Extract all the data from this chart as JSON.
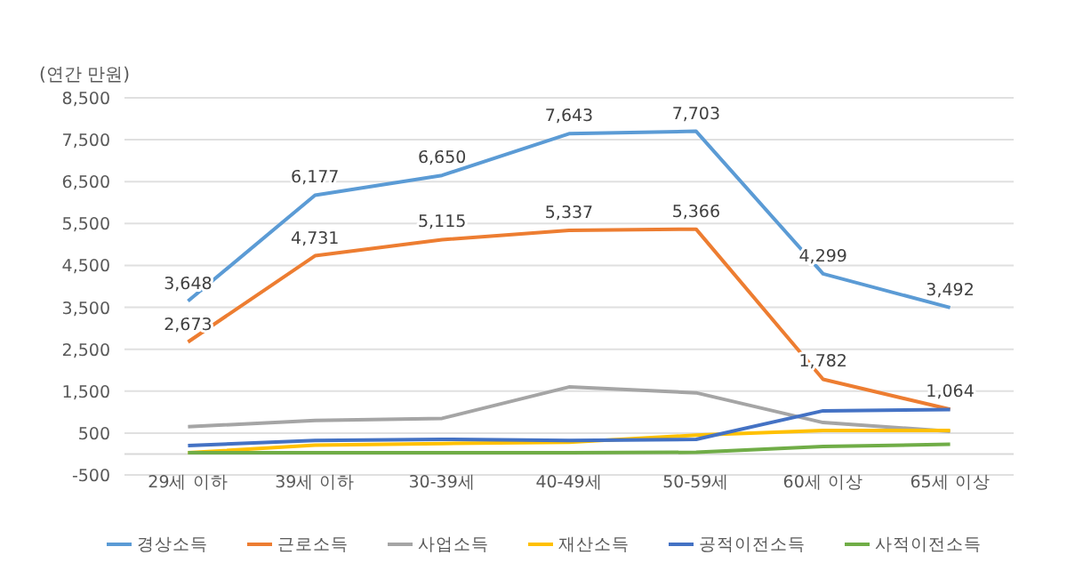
{
  "chart_data": {
    "type": "line",
    "ylabel": "(연간 만원)",
    "categories": [
      "29세 이하",
      "39세 이하",
      "30-39세",
      "40-49세",
      "50-59세",
      "60세 이상",
      "65세 이상"
    ],
    "ylim": [
      -500,
      8500
    ],
    "yticks": [
      {
        "value": -500,
        "label": "-500"
      },
      {
        "value": 500,
        "label": "500"
      },
      {
        "value": 1500,
        "label": "1,500"
      },
      {
        "value": 2500,
        "label": "2,500"
      },
      {
        "value": 3500,
        "label": "3,500"
      },
      {
        "value": 4500,
        "label": "4,500"
      },
      {
        "value": 5500,
        "label": "5,500"
      },
      {
        "value": 6500,
        "label": "6,500"
      },
      {
        "value": 7500,
        "label": "7,500"
      },
      {
        "value": 8500,
        "label": "8,500"
      }
    ],
    "grid": "y",
    "legend": "bottom",
    "marker": "none",
    "line_style": "solid",
    "series": [
      {
        "name": "경상소득",
        "color": "#5b9bd5",
        "values": [
          3648,
          6177,
          6650,
          7643,
          7703,
          4299,
          3492
        ],
        "value_labels": [
          "3,648",
          "6,177",
          "6,650",
          "7,643",
          "7,703",
          "4,299",
          "3,492"
        ]
      },
      {
        "name": "근로소득",
        "color": "#ed7d31",
        "values": [
          2673,
          4731,
          5115,
          5337,
          5366,
          1782,
          1064
        ],
        "value_labels": [
          "2,673",
          "4,731",
          "5,115",
          "5,337",
          "5,366",
          "1,782",
          "1,064"
        ]
      },
      {
        "name": "사업소득",
        "color": "#a5a5a5",
        "values": [
          650,
          800,
          850,
          1600,
          1460,
          750,
          540
        ]
      },
      {
        "name": "재산소득",
        "color": "#ffc000",
        "values": [
          30,
          210,
          250,
          280,
          450,
          560,
          560
        ]
      },
      {
        "name": "공적이전소득",
        "color": "#4472c4",
        "values": [
          200,
          320,
          350,
          320,
          350,
          1030,
          1060
        ]
      },
      {
        "name": "사적이전소득",
        "color": "#70ad47",
        "values": [
          30,
          30,
          30,
          30,
          40,
          180,
          230
        ]
      }
    ]
  }
}
